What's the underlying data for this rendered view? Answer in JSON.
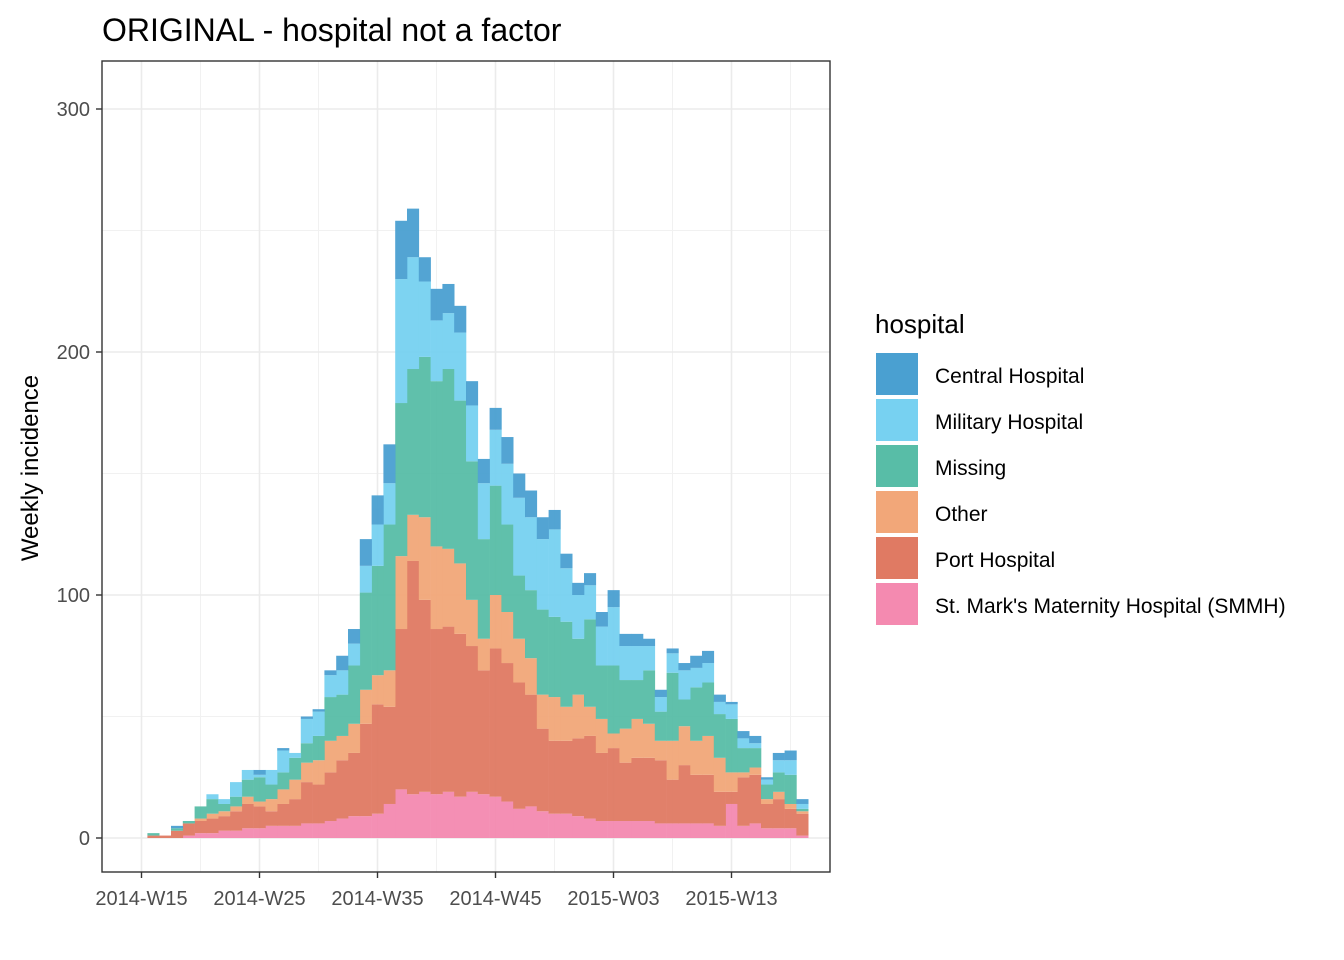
{
  "chart_data": {
    "type": "bar",
    "subtype": "stacked-histogram",
    "title": "ORIGINAL - hospital not a factor",
    "xlabel": "",
    "ylabel": "Weekly incidence",
    "ylim": [
      -12,
      320
    ],
    "yticks": [
      0,
      100,
      200,
      300
    ],
    "xticks": [
      "2014-W15",
      "2014-W25",
      "2014-W35",
      "2014-W45",
      "2015-W03",
      "2015-W13"
    ],
    "grid": true,
    "legend": {
      "title": "hospital",
      "position": "right"
    },
    "weeks": [
      "2014-W15",
      "2014-W16",
      "2014-W17",
      "2014-W18",
      "2014-W19",
      "2014-W20",
      "2014-W21",
      "2014-W22",
      "2014-W23",
      "2014-W24",
      "2014-W25",
      "2014-W26",
      "2014-W27",
      "2014-W28",
      "2014-W29",
      "2014-W30",
      "2014-W31",
      "2014-W32",
      "2014-W33",
      "2014-W34",
      "2014-W35",
      "2014-W36",
      "2014-W37",
      "2014-W38",
      "2014-W39",
      "2014-W40",
      "2014-W41",
      "2014-W42",
      "2014-W43",
      "2014-W44",
      "2014-W45",
      "2014-W46",
      "2014-W47",
      "2014-W48",
      "2014-W49",
      "2014-W50",
      "2014-W51",
      "2014-W52",
      "2015-W01",
      "2015-W02",
      "2015-W03",
      "2015-W04",
      "2015-W05",
      "2015-W06",
      "2015-W07",
      "2015-W08",
      "2015-W09",
      "2015-W10",
      "2015-W11",
      "2015-W12",
      "2015-W13",
      "2015-W14",
      "2015-W15",
      "2015-W16",
      "2015-W17",
      "2015-W18",
      "2015-W19"
    ],
    "series": [
      {
        "name": "St. Mark's Maternity Hospital (SMMH)",
        "color": "#F48AB0",
        "values": [
          0,
          0,
          0,
          0,
          1,
          2,
          2,
          3,
          3,
          4,
          4,
          5,
          5,
          5,
          6,
          6,
          7,
          8,
          9,
          9,
          10,
          14,
          20,
          18,
          19,
          18,
          19,
          17,
          19,
          18,
          17,
          15,
          12,
          13,
          11,
          10,
          10,
          9,
          8,
          7,
          7,
          7,
          7,
          7,
          6,
          6,
          6,
          6,
          6,
          5,
          14,
          5,
          6,
          4,
          4,
          4,
          1
        ]
      },
      {
        "name": "Port Hospital",
        "color": "#E07A63",
        "values": [
          0,
          1,
          1,
          3,
          5,
          5,
          6,
          6,
          8,
          10,
          9,
          6,
          9,
          11,
          17,
          16,
          20,
          24,
          26,
          38,
          45,
          40,
          66,
          96,
          79,
          68,
          68,
          67,
          60,
          51,
          61,
          57,
          52,
          46,
          34,
          30,
          30,
          32,
          34,
          28,
          30,
          24,
          26,
          26,
          26,
          18,
          24,
          20,
          20,
          14,
          5,
          20,
          20,
          10,
          12,
          8,
          9
        ]
      },
      {
        "name": "Other",
        "color": "#F2A779",
        "values": [
          0,
          0,
          0,
          0,
          0,
          1,
          2,
          2,
          2,
          3,
          2,
          5,
          6,
          8,
          8,
          10,
          13,
          10,
          12,
          14,
          12,
          15,
          30,
          19,
          34,
          34,
          32,
          29,
          19,
          13,
          22,
          21,
          18,
          15,
          14,
          18,
          14,
          18,
          12,
          14,
          6,
          14,
          16,
          14,
          8,
          16,
          16,
          14,
          16,
          14,
          8,
          2,
          3,
          2,
          3,
          2,
          1
        ]
      },
      {
        "name": "Missing",
        "color": "#58BDA7",
        "values": [
          0,
          1,
          0,
          1,
          1,
          5,
          6,
          3,
          4,
          7,
          10,
          6,
          7,
          9,
          8,
          10,
          18,
          17,
          24,
          40,
          45,
          60,
          63,
          60,
          66,
          68,
          74,
          67,
          57,
          41,
          45,
          36,
          26,
          28,
          35,
          33,
          35,
          23,
          36,
          22,
          28,
          20,
          16,
          22,
          12,
          28,
          11,
          22,
          22,
          18,
          22,
          10,
          8,
          6,
          8,
          12,
          1
        ]
      },
      {
        "name": "Military Hospital",
        "color": "#77D1F1",
        "values": [
          0,
          0,
          0,
          0,
          0,
          0,
          2,
          2,
          6,
          4,
          1,
          6,
          9,
          2,
          10,
          10,
          9,
          10,
          9,
          11,
          17,
          17,
          51,
          46,
          31,
          25,
          23,
          28,
          23,
          23,
          23,
          25,
          32,
          30,
          29,
          36,
          22,
          18,
          14,
          16,
          24,
          14,
          14,
          10,
          6,
          8,
          12,
          8,
          8,
          5,
          6,
          4,
          2,
          2,
          5,
          6,
          2
        ]
      },
      {
        "name": "Central Hospital",
        "color": "#4AA0D1",
        "values": [
          0,
          0,
          0,
          1,
          0,
          0,
          0,
          0,
          0,
          0,
          2,
          0,
          1,
          0,
          1,
          1,
          2,
          6,
          6,
          11,
          12,
          16,
          24,
          20,
          10,
          13,
          12,
          11,
          10,
          10,
          9,
          11,
          10,
          11,
          9,
          8,
          6,
          5,
          5,
          6,
          7,
          5,
          5,
          3,
          3,
          2,
          3,
          5,
          5,
          3,
          1,
          3,
          3,
          1,
          3,
          4,
          2
        ]
      }
    ]
  }
}
